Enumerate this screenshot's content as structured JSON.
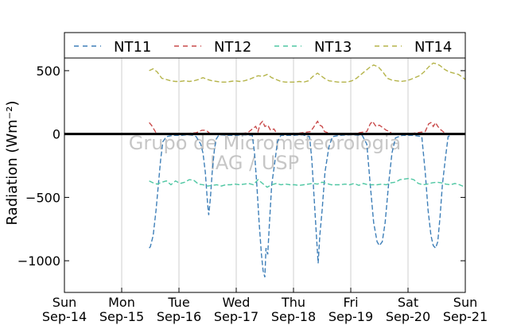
{
  "chart_data": {
    "type": "line",
    "ylabel": "Radiation (Wm⁻²)",
    "ylim": [
      -1250,
      600
    ],
    "yticks": [
      500,
      0,
      -500,
      -1000
    ],
    "ytick_labels": [
      "500",
      "0",
      "−500",
      "−1000"
    ],
    "xlim": [
      0,
      7
    ],
    "xticks": [
      0,
      1,
      2,
      3,
      4,
      5,
      6,
      7
    ],
    "xtick_labels": [
      {
        "day": "Sun",
        "date": "Sep-14"
      },
      {
        "day": "Mon",
        "date": "Sep-15"
      },
      {
        "day": "Tue",
        "date": "Sep-16"
      },
      {
        "day": "Wed",
        "date": "Sep-17"
      },
      {
        "day": "Thu",
        "date": "Sep-18"
      },
      {
        "day": "Fri",
        "date": "Sep-19"
      },
      {
        "day": "Sat",
        "date": "Sep-20"
      },
      {
        "day": "Sun",
        "date": "Sep-21"
      }
    ],
    "grid": "vertical",
    "zero_line": 0,
    "legend_position": "top",
    "watermark": [
      "Grupo de Micrometeorologia",
      "IAG / USP"
    ],
    "series": [
      {
        "name": "NT11",
        "color": "#3e7fb8",
        "points": [
          [
            1.48,
            -900
          ],
          [
            1.5,
            -890
          ],
          [
            1.55,
            -800
          ],
          [
            1.6,
            -600
          ],
          [
            1.64,
            -400
          ],
          [
            1.68,
            -200
          ],
          [
            1.72,
            -60
          ],
          [
            1.78,
            -20
          ],
          [
            1.9,
            -10
          ],
          [
            2.05,
            -10
          ],
          [
            2.15,
            -5
          ],
          [
            2.25,
            -10
          ],
          [
            2.3,
            -20
          ],
          [
            2.38,
            -80
          ],
          [
            2.42,
            -150
          ],
          [
            2.46,
            -300
          ],
          [
            2.5,
            -550
          ],
          [
            2.52,
            -640
          ],
          [
            2.55,
            -500
          ],
          [
            2.58,
            -300
          ],
          [
            2.62,
            -120
          ],
          [
            2.65,
            -40
          ],
          [
            2.7,
            -5
          ],
          [
            2.85,
            -10
          ],
          [
            3.0,
            -10
          ],
          [
            3.15,
            -5
          ],
          [
            3.28,
            -10
          ],
          [
            3.32,
            -150
          ],
          [
            3.36,
            -400
          ],
          [
            3.4,
            -700
          ],
          [
            3.44,
            -950
          ],
          [
            3.47,
            -1080
          ],
          [
            3.5,
            -1130
          ],
          [
            3.52,
            -900
          ],
          [
            3.55,
            -950
          ],
          [
            3.58,
            -700
          ],
          [
            3.62,
            -400
          ],
          [
            3.68,
            -200
          ],
          [
            3.72,
            -60
          ],
          [
            3.78,
            -10
          ],
          [
            4.0,
            -10
          ],
          [
            4.15,
            -5
          ],
          [
            4.28,
            -20
          ],
          [
            4.32,
            -200
          ],
          [
            4.36,
            -500
          ],
          [
            4.4,
            -800
          ],
          [
            4.43,
            -1020
          ],
          [
            4.46,
            -800
          ],
          [
            4.5,
            -600
          ],
          [
            4.55,
            -300
          ],
          [
            4.62,
            -100
          ],
          [
            4.68,
            -20
          ],
          [
            4.8,
            -10
          ],
          [
            5.0,
            -5
          ],
          [
            5.2,
            -10
          ],
          [
            5.28,
            -80
          ],
          [
            5.34,
            -400
          ],
          [
            5.4,
            -700
          ],
          [
            5.46,
            -850
          ],
          [
            5.5,
            -880
          ],
          [
            5.55,
            -850
          ],
          [
            5.6,
            -700
          ],
          [
            5.66,
            -400
          ],
          [
            5.72,
            -150
          ],
          [
            5.78,
            -30
          ],
          [
            5.9,
            -10
          ],
          [
            6.1,
            -10
          ],
          [
            6.24,
            -20
          ],
          [
            6.3,
            -300
          ],
          [
            6.35,
            -600
          ],
          [
            6.4,
            -800
          ],
          [
            6.44,
            -880
          ],
          [
            6.48,
            -900
          ],
          [
            6.52,
            -850
          ],
          [
            6.56,
            -650
          ],
          [
            6.6,
            -400
          ],
          [
            6.65,
            -200
          ],
          [
            6.7,
            -20
          ],
          [
            6.75,
            -10
          ]
        ]
      },
      {
        "name": "NT12",
        "color": "#c94a4a",
        "points": [
          [
            1.48,
            90
          ],
          [
            1.52,
            70
          ],
          [
            1.56,
            40
          ],
          [
            1.6,
            10
          ],
          [
            1.64,
            0
          ],
          [
            1.7,
            5
          ],
          [
            1.78,
            0
          ],
          [
            2.0,
            0
          ],
          [
            2.3,
            10
          ],
          [
            2.4,
            30
          ],
          [
            2.46,
            30
          ],
          [
            2.5,
            20
          ],
          [
            2.55,
            0
          ],
          [
            3.0,
            0
          ],
          [
            3.2,
            10
          ],
          [
            3.28,
            40
          ],
          [
            3.34,
            60
          ],
          [
            3.38,
            20
          ],
          [
            3.42,
            80
          ],
          [
            3.46,
            100
          ],
          [
            3.5,
            60
          ],
          [
            3.55,
            70
          ],
          [
            3.6,
            30
          ],
          [
            3.66,
            40
          ],
          [
            3.7,
            10
          ],
          [
            3.76,
            0
          ],
          [
            4.0,
            0
          ],
          [
            4.3,
            20
          ],
          [
            4.36,
            60
          ],
          [
            4.42,
            100
          ],
          [
            4.46,
            70
          ],
          [
            4.5,
            60
          ],
          [
            4.54,
            20
          ],
          [
            4.6,
            10
          ],
          [
            4.66,
            0
          ],
          [
            5.0,
            0
          ],
          [
            5.28,
            20
          ],
          [
            5.34,
            80
          ],
          [
            5.38,
            100
          ],
          [
            5.44,
            60
          ],
          [
            5.5,
            70
          ],
          [
            5.56,
            50
          ],
          [
            5.62,
            30
          ],
          [
            5.68,
            20
          ],
          [
            5.72,
            0
          ],
          [
            6.0,
            0
          ],
          [
            6.3,
            20
          ],
          [
            6.36,
            80
          ],
          [
            6.4,
            90
          ],
          [
            6.44,
            60
          ],
          [
            6.48,
            90
          ],
          [
            6.52,
            60
          ],
          [
            6.58,
            30
          ],
          [
            6.64,
            10
          ],
          [
            6.7,
            0
          ]
        ]
      },
      {
        "name": "NT13",
        "color": "#4fc7a3",
        "points": [
          [
            1.48,
            -370
          ],
          [
            1.55,
            -385
          ],
          [
            1.62,
            -395
          ],
          [
            1.7,
            -380
          ],
          [
            1.78,
            -370
          ],
          [
            1.86,
            -400
          ],
          [
            1.94,
            -370
          ],
          [
            2.02,
            -390
          ],
          [
            2.1,
            -380
          ],
          [
            2.18,
            -360
          ],
          [
            2.26,
            -365
          ],
          [
            2.34,
            -395
          ],
          [
            2.42,
            -400
          ],
          [
            2.5,
            -410
          ],
          [
            2.58,
            -405
          ],
          [
            2.66,
            -400
          ],
          [
            2.74,
            -410
          ],
          [
            2.82,
            -400
          ],
          [
            2.9,
            -400
          ],
          [
            2.98,
            -395
          ],
          [
            3.06,
            -400
          ],
          [
            3.14,
            -395
          ],
          [
            3.22,
            -390
          ],
          [
            3.3,
            -400
          ],
          [
            3.38,
            -360
          ],
          [
            3.46,
            -390
          ],
          [
            3.54,
            -420
          ],
          [
            3.62,
            -400
          ],
          [
            3.7,
            -390
          ],
          [
            3.78,
            -400
          ],
          [
            3.86,
            -395
          ],
          [
            3.94,
            -400
          ],
          [
            4.02,
            -400
          ],
          [
            4.1,
            -405
          ],
          [
            4.18,
            -400
          ],
          [
            4.26,
            -395
          ],
          [
            4.34,
            -390
          ],
          [
            4.42,
            -395
          ],
          [
            4.5,
            -380
          ],
          [
            4.58,
            -390
          ],
          [
            4.66,
            -400
          ],
          [
            4.74,
            -400
          ],
          [
            4.82,
            -400
          ],
          [
            4.9,
            -395
          ],
          [
            4.98,
            -400
          ],
          [
            5.06,
            -390
          ],
          [
            5.14,
            -405
          ],
          [
            5.22,
            -390
          ],
          [
            5.3,
            -400
          ],
          [
            5.38,
            -400
          ],
          [
            5.46,
            -400
          ],
          [
            5.54,
            -395
          ],
          [
            5.62,
            -400
          ],
          [
            5.7,
            -385
          ],
          [
            5.78,
            -380
          ],
          [
            5.86,
            -360
          ],
          [
            5.94,
            -355
          ],
          [
            6.02,
            -350
          ],
          [
            6.1,
            -360
          ],
          [
            6.18,
            -390
          ],
          [
            6.26,
            -400
          ],
          [
            6.34,
            -395
          ],
          [
            6.42,
            -385
          ],
          [
            6.5,
            -380
          ],
          [
            6.58,
            -385
          ],
          [
            6.66,
            -395
          ],
          [
            6.74,
            -400
          ],
          [
            6.82,
            -390
          ],
          [
            6.9,
            -400
          ],
          [
            7.0,
            -420
          ]
        ]
      },
      {
        "name": "NT14",
        "color": "#b5b44a",
        "points": [
          [
            1.48,
            500
          ],
          [
            1.55,
            515
          ],
          [
            1.62,
            490
          ],
          [
            1.7,
            440
          ],
          [
            1.78,
            430
          ],
          [
            1.86,
            420
          ],
          [
            1.94,
            415
          ],
          [
            2.02,
            415
          ],
          [
            2.1,
            420
          ],
          [
            2.18,
            415
          ],
          [
            2.26,
            420
          ],
          [
            2.34,
            430
          ],
          [
            2.42,
            445
          ],
          [
            2.5,
            430
          ],
          [
            2.58,
            420
          ],
          [
            2.66,
            415
          ],
          [
            2.74,
            410
          ],
          [
            2.82,
            410
          ],
          [
            2.9,
            415
          ],
          [
            2.98,
            420
          ],
          [
            3.06,
            415
          ],
          [
            3.14,
            420
          ],
          [
            3.22,
            430
          ],
          [
            3.3,
            445
          ],
          [
            3.38,
            460
          ],
          [
            3.46,
            455
          ],
          [
            3.54,
            470
          ],
          [
            3.62,
            445
          ],
          [
            3.7,
            430
          ],
          [
            3.78,
            415
          ],
          [
            3.86,
            410
          ],
          [
            3.94,
            410
          ],
          [
            4.02,
            410
          ],
          [
            4.1,
            415
          ],
          [
            4.18,
            410
          ],
          [
            4.26,
            420
          ],
          [
            4.34,
            455
          ],
          [
            4.42,
            480
          ],
          [
            4.48,
            460
          ],
          [
            4.54,
            440
          ],
          [
            4.62,
            420
          ],
          [
            4.7,
            415
          ],
          [
            4.78,
            410
          ],
          [
            4.86,
            410
          ],
          [
            4.94,
            410
          ],
          [
            5.02,
            420
          ],
          [
            5.1,
            440
          ],
          [
            5.18,
            470
          ],
          [
            5.26,
            500
          ],
          [
            5.34,
            530
          ],
          [
            5.4,
            545
          ],
          [
            5.48,
            530
          ],
          [
            5.56,
            490
          ],
          [
            5.64,
            440
          ],
          [
            5.72,
            425
          ],
          [
            5.8,
            420
          ],
          [
            5.88,
            415
          ],
          [
            5.96,
            420
          ],
          [
            6.04,
            430
          ],
          [
            6.12,
            445
          ],
          [
            6.2,
            460
          ],
          [
            6.28,
            490
          ],
          [
            6.36,
            530
          ],
          [
            6.44,
            560
          ],
          [
            6.5,
            555
          ],
          [
            6.56,
            540
          ],
          [
            6.64,
            510
          ],
          [
            6.72,
            490
          ],
          [
            6.8,
            480
          ],
          [
            6.88,
            470
          ],
          [
            6.96,
            445
          ],
          [
            7.0,
            430
          ]
        ]
      }
    ]
  }
}
